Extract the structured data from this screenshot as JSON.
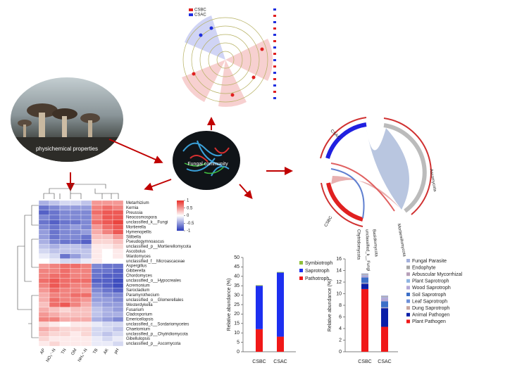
{
  "photo_label": "physichemical properties",
  "center_label": "Fungal community",
  "cladogram": {
    "legend": [
      "CSBC",
      "CSAC"
    ]
  },
  "chord": {
    "labels": [
      "CSBC",
      "CSAC",
      "Ascomycota",
      "Mortierellomycota",
      "Basidiomycota",
      "unclassified_k__Fungi",
      "Chytridiomycota"
    ]
  },
  "heatmap": {
    "columns": [
      "AP",
      "NO₃⁻-N",
      "TN",
      "OM",
      "NH₄⁺-N",
      "TB",
      "AK",
      "pH"
    ],
    "rows": [
      "Metarhizium",
      "Kernia",
      "Preussia",
      "Neocosmospora",
      "unclassified_k__Fungi",
      "Mortierella",
      "Hymenopellis",
      "Stilbella",
      "Pseudogymnoascus",
      "unclassified_p__Mortierellomycota",
      "Ascobolus",
      "Wardomyces",
      "unclassified_f__Microascaceae",
      "Aspergillus",
      "Gibberella",
      "Chordomyces",
      "unclassified_o__Hypocreales",
      "Acremonium",
      "Sarocladium",
      "Paramyrothecium",
      "unclassified_o__Glomerellales",
      "Westerdykella",
      "Fusarium",
      "Cladosporium",
      "Emericellopsis",
      "unclassified_c__Sordariomycetes",
      "Chaetomium",
      "unclassified_p__Chytridiomycota",
      "Gibellulopsis",
      "unclassified_p__Ascomycota"
    ],
    "values": [
      [
        -0.4,
        -0.3,
        -0.2,
        -0.2,
        -0.3,
        0.5,
        0.5,
        0.5
      ],
      [
        -0.7,
        -0.6,
        -0.5,
        -0.5,
        -0.5,
        0.6,
        0.7,
        0.6
      ],
      [
        -0.8,
        -0.7,
        -0.6,
        -0.6,
        -0.6,
        0.7,
        0.8,
        0.8
      ],
      [
        -0.6,
        -0.7,
        -0.6,
        -0.6,
        -0.6,
        0.6,
        0.8,
        0.8
      ],
      [
        -0.7,
        -0.8,
        -0.7,
        -0.7,
        -0.6,
        0.7,
        0.8,
        0.9
      ],
      [
        -0.6,
        -0.7,
        -0.6,
        -0.5,
        -0.6,
        0.5,
        0.7,
        0.8
      ],
      [
        -0.5,
        -0.7,
        -0.6,
        -0.6,
        -0.5,
        0.4,
        0.6,
        0.8
      ],
      [
        -0.5,
        -0.7,
        -0.6,
        -0.6,
        -0.7,
        0.3,
        0.3,
        0.5
      ],
      [
        -0.4,
        -0.6,
        -0.7,
        -0.7,
        -0.8,
        0.2,
        0.2,
        0.3
      ],
      [
        -0.3,
        -0.4,
        -0.3,
        -0.3,
        -0.4,
        0.1,
        0.1,
        0.2
      ],
      [
        -0.2,
        -0.3,
        -0.3,
        -0.3,
        -0.3,
        0.1,
        0.0,
        0.1
      ],
      [
        -0.1,
        -0.2,
        -0.7,
        -0.5,
        -0.3,
        0.1,
        0.0,
        0.1
      ],
      [
        0.0,
        -0.1,
        -0.2,
        -0.2,
        -0.1,
        0.1,
        0.0,
        0.0
      ],
      [
        0.5,
        0.6,
        0.7,
        0.7,
        0.6,
        -0.6,
        -0.7,
        -0.7
      ],
      [
        0.6,
        0.6,
        0.7,
        0.6,
        0.6,
        -0.7,
        -0.7,
        -0.8
      ],
      [
        0.6,
        0.7,
        0.7,
        0.6,
        0.6,
        -0.7,
        -0.8,
        -0.8
      ],
      [
        0.7,
        0.8,
        0.7,
        0.7,
        0.7,
        -0.8,
        -0.8,
        -0.9
      ],
      [
        0.6,
        0.8,
        0.7,
        0.6,
        0.6,
        -0.7,
        -0.8,
        -0.9
      ],
      [
        0.5,
        0.7,
        0.6,
        0.6,
        0.5,
        -0.6,
        -0.7,
        -0.8
      ],
      [
        0.4,
        0.6,
        0.6,
        0.7,
        0.7,
        -0.5,
        -0.6,
        -0.6
      ],
      [
        0.4,
        0.7,
        0.6,
        0.6,
        0.5,
        -0.5,
        -0.5,
        -0.6
      ],
      [
        0.3,
        0.7,
        0.8,
        0.6,
        0.4,
        -0.4,
        -0.5,
        -0.5
      ],
      [
        0.4,
        0.3,
        0.2,
        0.3,
        0.3,
        -0.3,
        -0.4,
        -0.5
      ],
      [
        0.5,
        0.4,
        0.3,
        0.3,
        0.3,
        -0.3,
        -0.4,
        -0.4
      ],
      [
        0.6,
        0.6,
        0.4,
        0.4,
        0.4,
        -0.4,
        -0.5,
        -0.6
      ],
      [
        0.2,
        0.1,
        0.0,
        0.1,
        0.1,
        -0.1,
        -0.2,
        -0.2
      ],
      [
        0.4,
        0.3,
        0.2,
        0.2,
        0.2,
        -0.2,
        -0.2,
        -0.3
      ],
      [
        0.3,
        0.2,
        0.2,
        0.1,
        0.2,
        -0.2,
        -0.3,
        -0.2
      ],
      [
        0.2,
        0.1,
        0.1,
        0.1,
        0.1,
        -0.1,
        -0.2,
        -0.1
      ],
      [
        0.1,
        0.2,
        0.1,
        0.1,
        0.1,
        -0.1,
        -0.1,
        -0.2
      ]
    ],
    "clim": [
      -1,
      1
    ],
    "colorbar_ticks": [
      1,
      0.5,
      0,
      -0.5,
      -1
    ],
    "colors": [
      "#2a3ab8",
      "#ffffff",
      "#e8302a"
    ]
  },
  "chart_data": [
    {
      "type": "bar",
      "stacked": true,
      "ylabel": "Relative abundance (%)",
      "categories": [
        "CSBC",
        "CSAC"
      ],
      "series": [
        {
          "name": "Symbiotroph",
          "color": "#8fbf3a",
          "values": [
            0.3,
            0.3
          ]
        },
        {
          "name": "Saprotroph",
          "color": "#1d2ff0",
          "values": [
            23,
            34
          ]
        },
        {
          "name": "Pathotroph",
          "color": "#f01818",
          "values": [
            12,
            8
          ]
        }
      ],
      "ylim": [
        0,
        50
      ],
      "yticks": [
        0,
        5,
        10,
        15,
        20,
        25,
        30,
        35,
        40,
        45,
        50
      ]
    },
    {
      "type": "bar",
      "stacked": true,
      "ylabel": "Relative abundance (%)",
      "categories": [
        "CSBC",
        "CSAC"
      ],
      "series": [
        {
          "name": "Fungal Parasite",
          "color": "#a3b0dc",
          "values": [
            0.1,
            0.1
          ]
        },
        {
          "name": "Endophyte",
          "color": "#a6a6a6",
          "values": [
            0.1,
            0.1
          ]
        },
        {
          "name": "Arbuscular Mycorrhizal",
          "color": "#b79fb8",
          "values": [
            0.1,
            0.1
          ]
        },
        {
          "name": "Plant Saprotroph",
          "color": "#8db4e2",
          "values": [
            0.1,
            0.1
          ]
        },
        {
          "name": "Wood Saprotroph",
          "color": "#b4a7d6",
          "values": [
            0.3,
            0.6
          ]
        },
        {
          "name": "Soil Saprotroph",
          "color": "#3c6fc8",
          "values": [
            0.9,
            1.0
          ]
        },
        {
          "name": "Leaf Saprotroph",
          "color": "#6d8fd8",
          "values": [
            0.1,
            0.1
          ]
        },
        {
          "name": "Dung Saprotroph",
          "color": "#c8a6a0",
          "values": [
            0.1,
            0.1
          ]
        },
        {
          "name": "Animal Pathogen",
          "color": "#0a1ea8",
          "values": [
            0.9,
            3.2
          ]
        },
        {
          "name": "Plant Pathogen",
          "color": "#f01818",
          "values": [
            10.8,
            4.3
          ]
        }
      ],
      "ylim": [
        0,
        16
      ],
      "yticks": [
        0,
        2,
        4,
        6,
        8,
        10,
        12,
        14,
        16
      ]
    }
  ]
}
